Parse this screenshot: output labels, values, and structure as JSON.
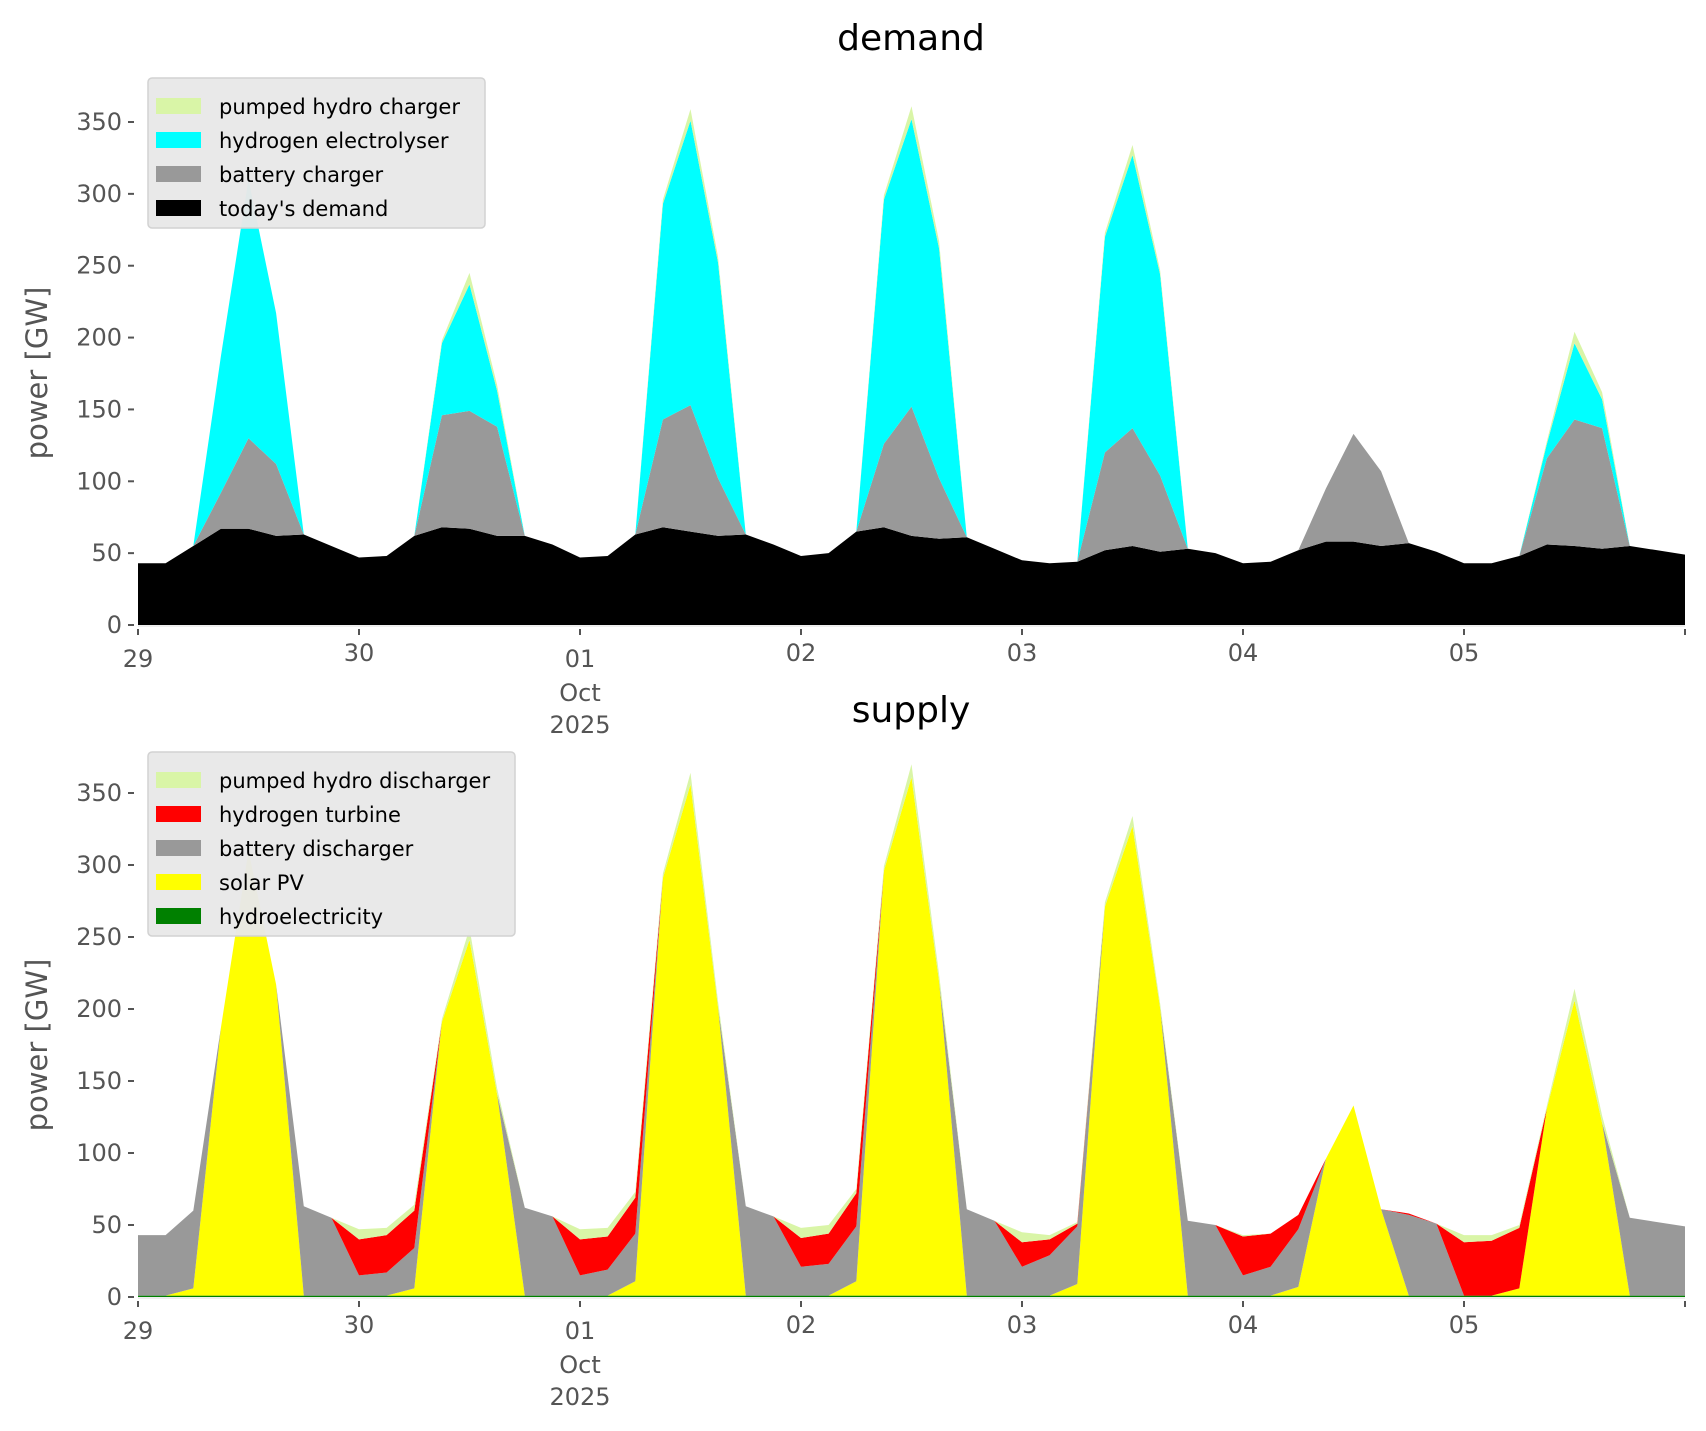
{
  "chart_data": [
    {
      "type": "area",
      "stacked": true,
      "title": "demand",
      "xlabel": "",
      "ylabel": "power [GW]",
      "ylim": [
        0,
        380
      ],
      "yticks": [
        0,
        50,
        100,
        150,
        200,
        250,
        300,
        350
      ],
      "x_unit": "hours since 29 Sep 2025 00:00",
      "xlim": [
        0,
        168
      ],
      "x": [
        0,
        3,
        6,
        9,
        12,
        15,
        18,
        21,
        24,
        27,
        30,
        33,
        36,
        39,
        42,
        45,
        48,
        51,
        54,
        57,
        60,
        63,
        66,
        69,
        72,
        75,
        78,
        81,
        84,
        87,
        90,
        93,
        96,
        99,
        102,
        105,
        108,
        111,
        114,
        117,
        120,
        123,
        126,
        129,
        132,
        135,
        138,
        141,
        144,
        147,
        150,
        153,
        156,
        159,
        162,
        165,
        168
      ],
      "xticks": [
        {
          "hour": 0,
          "label": "29"
        },
        {
          "hour": 24,
          "label": "30"
        },
        {
          "hour": 48,
          "label": "01",
          "sub1": "Oct",
          "sub2": "2025"
        },
        {
          "hour": 72,
          "label": "02"
        },
        {
          "hour": 96,
          "label": "03"
        },
        {
          "hour": 120,
          "label": "04"
        },
        {
          "hour": 144,
          "label": "05"
        }
      ],
      "legend_position": "top-left",
      "series": [
        {
          "name": "today's demand",
          "color": "#000000",
          "values": [
            43,
            43,
            55,
            67,
            67,
            62,
            63,
            55,
            47,
            48,
            62,
            68,
            67,
            62,
            62,
            56,
            47,
            48,
            63,
            68,
            65,
            62,
            63,
            56,
            48,
            50,
            65,
            68,
            62,
            60,
            61,
            53,
            45,
            43,
            44,
            52,
            55,
            51,
            53,
            50,
            43,
            44,
            52,
            58,
            58,
            55,
            57,
            51,
            43,
            43,
            48,
            56,
            55,
            53,
            55,
            52,
            49
          ]
        },
        {
          "name": "battery charger",
          "color": "#999999",
          "values": [
            0,
            0,
            0,
            25,
            63,
            50,
            0,
            0,
            0,
            0,
            0,
            78,
            82,
            76,
            0,
            0,
            0,
            0,
            0,
            75,
            88,
            40,
            0,
            0,
            0,
            0,
            0,
            58,
            90,
            42,
            0,
            0,
            0,
            0,
            0,
            68,
            82,
            53,
            0,
            0,
            0,
            0,
            0,
            37,
            75,
            52,
            0,
            0,
            0,
            0,
            0,
            60,
            88,
            84,
            0,
            0,
            0
          ]
        },
        {
          "name": "hydrogen electrolyser",
          "color": "#00ffff",
          "values": [
            0,
            0,
            0,
            95,
            180,
            105,
            0,
            0,
            0,
            0,
            0,
            50,
            88,
            25,
            0,
            0,
            0,
            0,
            0,
            150,
            198,
            150,
            0,
            0,
            0,
            0,
            0,
            170,
            200,
            160,
            0,
            0,
            0,
            0,
            0,
            150,
            190,
            140,
            0,
            0,
            0,
            0,
            0,
            0,
            0,
            0,
            0,
            0,
            0,
            0,
            0,
            10,
            53,
            20,
            0,
            0,
            0
          ]
        },
        {
          "name": "pumped hydro charger",
          "color": "#d9f5a7",
          "values": [
            0,
            0,
            0,
            0,
            0,
            0,
            0,
            0,
            0,
            0,
            0,
            2,
            8,
            4,
            0,
            0,
            0,
            0,
            0,
            3,
            8,
            4,
            0,
            0,
            0,
            0,
            0,
            3,
            9,
            5,
            0,
            0,
            0,
            0,
            0,
            3,
            7,
            3,
            0,
            0,
            0,
            0,
            0,
            0,
            0,
            0,
            0,
            0,
            0,
            0,
            0,
            2,
            8,
            5,
            0,
            0,
            0
          ]
        }
      ],
      "legend_order": [
        "pumped hydro charger",
        "hydrogen electrolyser",
        "battery charger",
        "today's demand"
      ]
    },
    {
      "type": "area",
      "stacked": true,
      "title": "supply",
      "xlabel": "",
      "ylabel": "power [GW]",
      "ylim": [
        0,
        380
      ],
      "yticks": [
        0,
        50,
        100,
        150,
        200,
        250,
        300,
        350
      ],
      "x_unit": "hours since 29 Sep 2025 00:00",
      "xlim": [
        0,
        168
      ],
      "x": [
        0,
        3,
        6,
        9,
        12,
        15,
        18,
        21,
        24,
        27,
        30,
        33,
        36,
        39,
        42,
        45,
        48,
        51,
        54,
        57,
        60,
        63,
        66,
        69,
        72,
        75,
        78,
        81,
        84,
        87,
        90,
        93,
        96,
        99,
        102,
        105,
        108,
        111,
        114,
        117,
        120,
        123,
        126,
        129,
        132,
        135,
        138,
        141,
        144,
        147,
        150,
        153,
        156,
        159,
        162,
        165,
        168
      ],
      "xticks": [
        {
          "hour": 0,
          "label": "29"
        },
        {
          "hour": 24,
          "label": "30"
        },
        {
          "hour": 48,
          "label": "01",
          "sub1": "Oct",
          "sub2": "2025"
        },
        {
          "hour": 72,
          "label": "02"
        },
        {
          "hour": 96,
          "label": "03"
        },
        {
          "hour": 120,
          "label": "04"
        },
        {
          "hour": 144,
          "label": "05"
        }
      ],
      "legend_position": "top-left",
      "series": [
        {
          "name": "hydroelectricity",
          "color": "#008000",
          "values": [
            1,
            1,
            1,
            1,
            1,
            1,
            1,
            1,
            1,
            1,
            1,
            1,
            1,
            1,
            1,
            1,
            1,
            1,
            1,
            1,
            1,
            1,
            1,
            1,
            1,
            1,
            1,
            1,
            1,
            1,
            1,
            1,
            1,
            1,
            1,
            1,
            1,
            1,
            1,
            1,
            1,
            1,
            1,
            1,
            1,
            1,
            1,
            1,
            1,
            1,
            1,
            1,
            1,
            1,
            1,
            1,
            1
          ]
        },
        {
          "name": "solar PV",
          "color": "#ffff00",
          "values": [
            0,
            0,
            5,
            186,
            309,
            216,
            0,
            0,
            0,
            0,
            5,
            190,
            247,
            140,
            0,
            0,
            0,
            0,
            10,
            290,
            355,
            200,
            0,
            0,
            0,
            0,
            10,
            295,
            360,
            218,
            0,
            0,
            0,
            0,
            8,
            270,
            326,
            200,
            0,
            0,
            0,
            0,
            6,
            95,
            132,
            60,
            0,
            0,
            0,
            0,
            5,
            130,
            205,
            120,
            0,
            0,
            0
          ]
        },
        {
          "name": "battery discharger",
          "color": "#999999",
          "values": [
            42,
            42,
            54,
            0,
            0,
            0,
            62,
            54,
            14,
            16,
            28,
            0,
            0,
            0,
            61,
            55,
            14,
            18,
            33,
            0,
            0,
            0,
            62,
            55,
            20,
            22,
            38,
            0,
            0,
            0,
            60,
            52,
            20,
            28,
            40,
            0,
            0,
            0,
            52,
            49,
            14,
            20,
            40,
            0,
            0,
            0,
            56,
            50,
            0,
            0,
            0,
            0,
            0,
            0,
            54,
            51,
            48
          ]
        },
        {
          "name": "hydrogen turbine",
          "color": "#ff0000",
          "values": [
            0,
            0,
            0,
            0,
            0,
            0,
            0,
            0,
            25,
            26,
            26,
            0,
            0,
            0,
            0,
            0,
            25,
            23,
            25,
            0,
            0,
            0,
            0,
            0,
            20,
            21,
            23,
            0,
            0,
            0,
            0,
            0,
            17,
            11,
            2,
            0,
            0,
            0,
            0,
            0,
            27,
            23,
            10,
            0,
            0,
            0,
            1,
            0,
            37,
            38,
            42,
            0,
            0,
            0,
            0,
            0,
            0
          ]
        },
        {
          "name": "pumped hydro discharger",
          "color": "#d9f5a7",
          "values": [
            0,
            0,
            0,
            0,
            0,
            0,
            0,
            0,
            7,
            5,
            4,
            2,
            8,
            4,
            0,
            0,
            7,
            6,
            4,
            3,
            8,
            4,
            0,
            0,
            7,
            6,
            3,
            3,
            9,
            5,
            0,
            0,
            7,
            3,
            1,
            3,
            7,
            3,
            0,
            0,
            1,
            0,
            0,
            0,
            0,
            0,
            0,
            0,
            5,
            4,
            2,
            2,
            8,
            5,
            0,
            0,
            0
          ]
        }
      ],
      "legend_order": [
        "pumped hydro discharger",
        "hydrogen turbine",
        "battery discharger",
        "solar PV",
        "hydroelectricity"
      ]
    }
  ]
}
